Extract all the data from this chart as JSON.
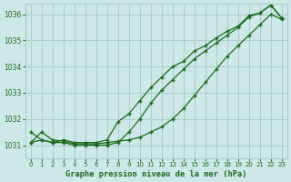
{
  "bg_color": "#cce8e8",
  "grid_color": "#aacccc",
  "line_color": "#1a6b1a",
  "marker_color": "#1a6b1a",
  "title": "Graphe pression niveau de la mer (hPa)",
  "title_color": "#1a6b1a",
  "xlim": [
    -0.5,
    23.5
  ],
  "ylim": [
    1030.5,
    1036.4
  ],
  "yticks": [
    1031,
    1032,
    1033,
    1034,
    1035,
    1036
  ],
  "xticks": [
    0,
    1,
    2,
    3,
    4,
    5,
    6,
    7,
    8,
    9,
    10,
    11,
    12,
    13,
    14,
    15,
    16,
    17,
    18,
    19,
    20,
    21,
    22,
    23
  ],
  "series": [
    [
      1031.1,
      1031.5,
      1031.2,
      1031.15,
      1031.05,
      1031.05,
      1031.05,
      1031.1,
      1031.15,
      1031.2,
      1031.3,
      1031.5,
      1031.7,
      1032.0,
      1032.4,
      1032.9,
      1033.4,
      1033.9,
      1034.4,
      1034.8,
      1035.2,
      1035.6,
      1036.0,
      1035.8
    ],
    [
      1031.1,
      1031.2,
      1031.1,
      1031.1,
      1031.0,
      1031.0,
      1031.0,
      1031.0,
      1031.1,
      1031.5,
      1032.0,
      1032.6,
      1033.1,
      1033.5,
      1033.9,
      1034.3,
      1034.6,
      1034.9,
      1035.2,
      1035.5,
      1035.9,
      1036.05,
      1036.35,
      1035.85
    ],
    [
      1031.5,
      1031.2,
      1031.1,
      1031.2,
      1031.1,
      1031.1,
      1031.1,
      1031.2,
      1031.9,
      1032.2,
      1032.7,
      1033.2,
      1033.6,
      1034.0,
      1034.2,
      1034.6,
      1034.8,
      1035.1,
      1035.35,
      1035.55,
      1035.95,
      1036.05,
      1036.35,
      1035.85
    ]
  ]
}
